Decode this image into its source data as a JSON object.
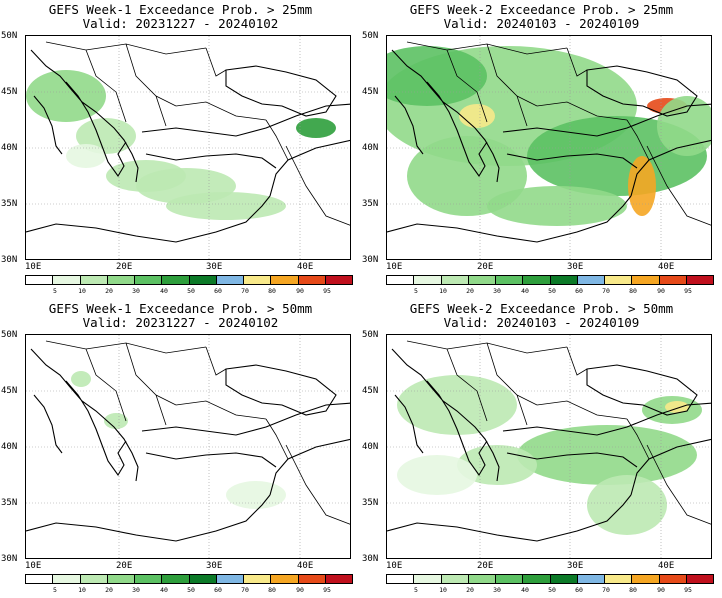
{
  "panels": [
    {
      "title_line1": "GEFS Week-1 Exceedance Prob. > 25mm",
      "title_line2": "Valid: 20231227 - 20240102"
    },
    {
      "title_line1": "GEFS Week-2 Exceedance Prob. > 25mm",
      "title_line2": "Valid: 20240103 - 20240109"
    },
    {
      "title_line1": "GEFS Week-1 Exceedance Prob. > 50mm",
      "title_line2": "Valid: 20231227 - 20240102"
    },
    {
      "title_line1": "GEFS Week-2 Exceedance Prob. > 50mm",
      "title_line2": "Valid: 20240103 - 20240109"
    }
  ],
  "axes": {
    "lat_labels": [
      "50N",
      "45N",
      "40N",
      "35N",
      "30N"
    ],
    "lon_labels": [
      "10E",
      "20E",
      "30E",
      "40E"
    ]
  },
  "colorbar": {
    "labels": [
      "5",
      "10",
      "20",
      "30",
      "40",
      "50",
      "60",
      "70",
      "80",
      "90",
      "95"
    ],
    "colors": [
      "#ffffff",
      "#e6f7e1",
      "#bde9b3",
      "#91d98a",
      "#5cc163",
      "#2e9e3c",
      "#0c7a28",
      "#7fb7e4",
      "#f8e98a",
      "#f5a623",
      "#e64a19",
      "#c0101d",
      "#a33a3a"
    ]
  }
}
